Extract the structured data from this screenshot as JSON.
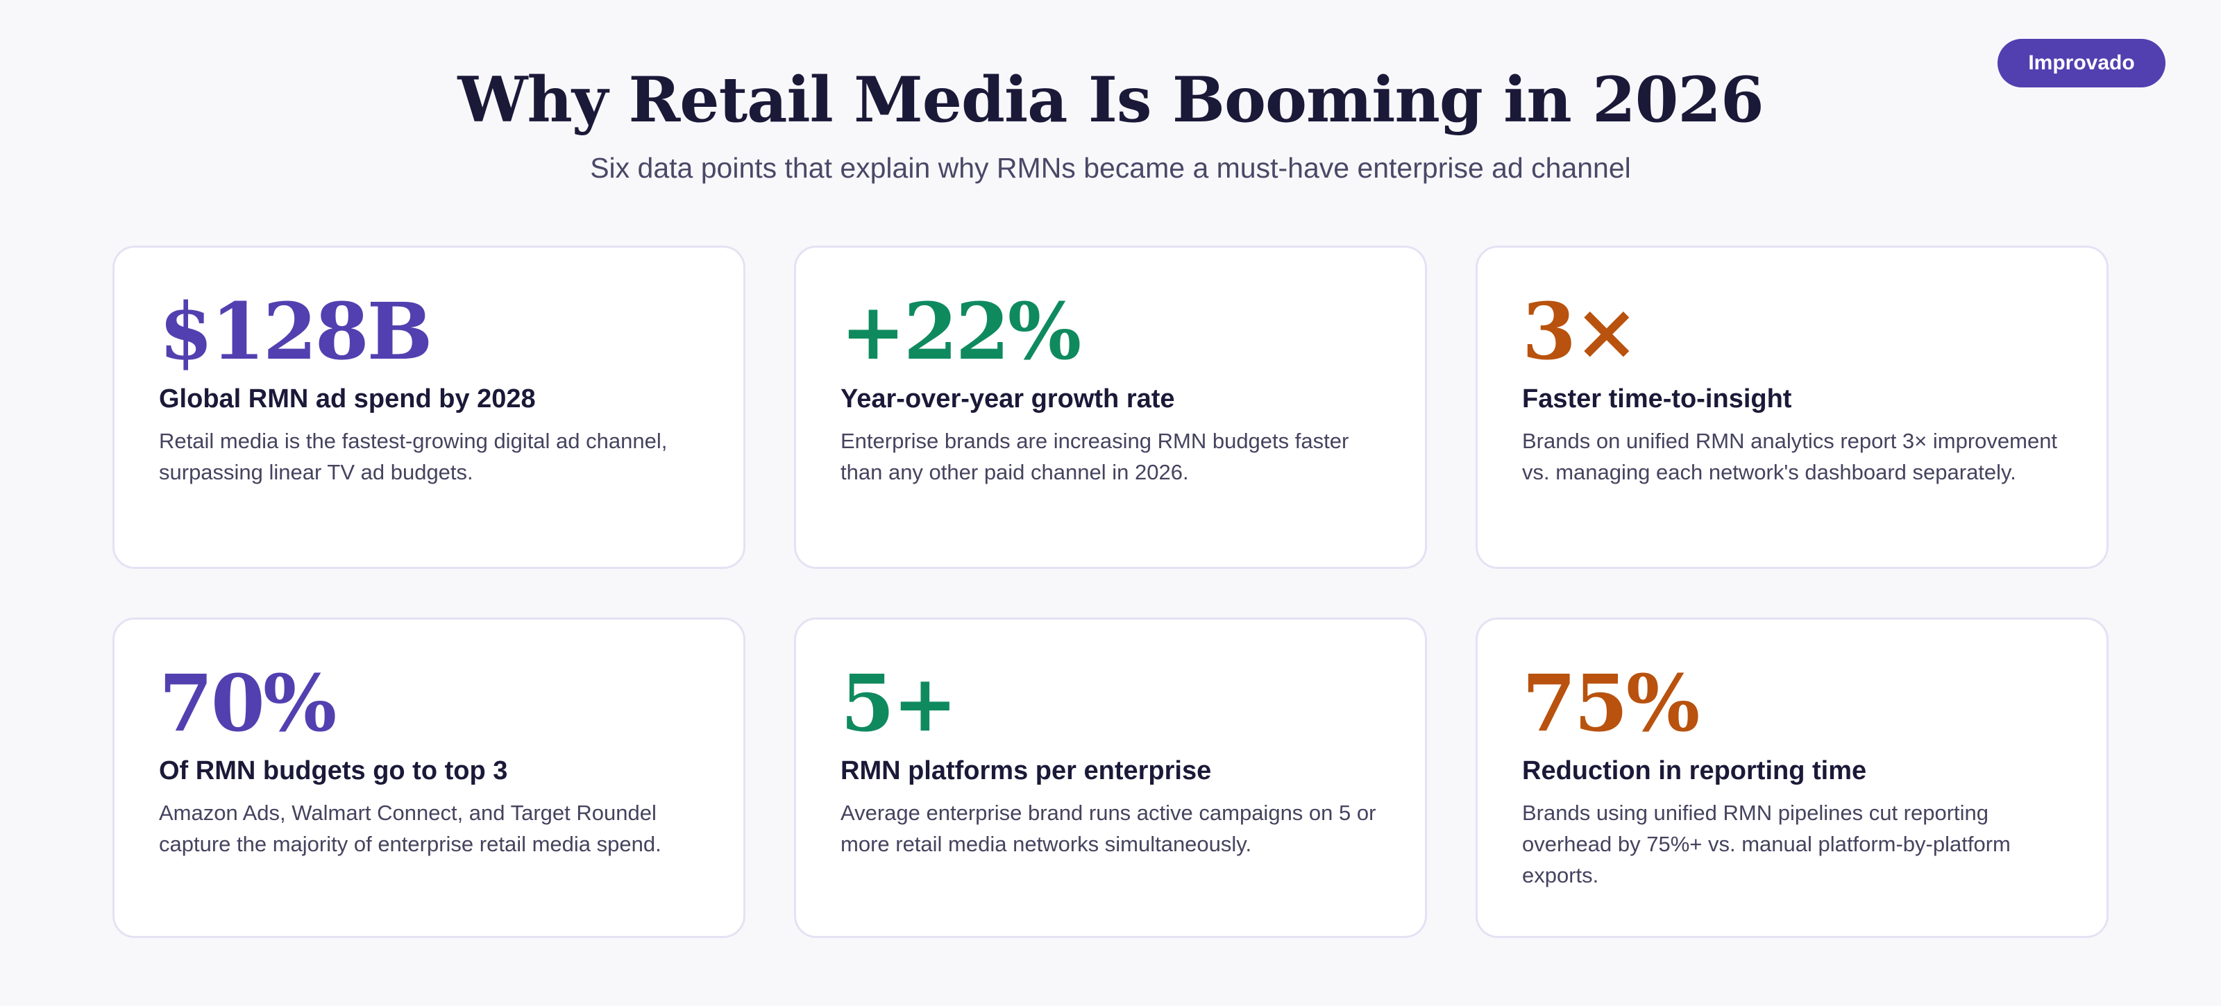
{
  "badge": {
    "label": "Improvado"
  },
  "header": {
    "title": "Why Retail Media Is Booming in 2026",
    "subtitle": "Six data points that explain why RMNs became a must-have enterprise ad channel"
  },
  "colors": {
    "purple": "#5240b0",
    "green": "#0f8a5f",
    "orange": "#b8520e",
    "dark": "#1b1938"
  },
  "cards": [
    {
      "stat": "$128B",
      "title": "Global RMN ad spend by 2028",
      "description": "Retail media is the fastest-growing digital ad channel, surpassing linear TV ad budgets.",
      "accent": "#5240b0"
    },
    {
      "stat": "+22%",
      "title": "Year-over-year growth rate",
      "description": "Enterprise brands are increasing RMN budgets faster than any other paid channel in 2026.",
      "accent": "#0f8a5f"
    },
    {
      "stat": "3×",
      "title": "Faster time-to-insight",
      "description": "Brands on unified RMN analytics report 3× improvement vs. managing each network's dashboard separately.",
      "accent": "#b8520e"
    },
    {
      "stat": "70%",
      "title": "Of RMN budgets go to top 3",
      "description": "Amazon Ads, Walmart Connect, and Target Roundel capture the majority of enterprise retail media spend.",
      "accent": "#5240b0"
    },
    {
      "stat": "5+",
      "title": "RMN platforms per enterprise",
      "description": "Average enterprise brand runs active campaigns on 5 or more retail media networks simultaneously.",
      "accent": "#0f8a5f"
    },
    {
      "stat": "75%",
      "title": "Reduction in reporting time",
      "description": "Brands using unified RMN pipelines cut reporting overhead by 75%+ vs. manual platform-by-platform exports.",
      "accent": "#b8520e"
    }
  ]
}
